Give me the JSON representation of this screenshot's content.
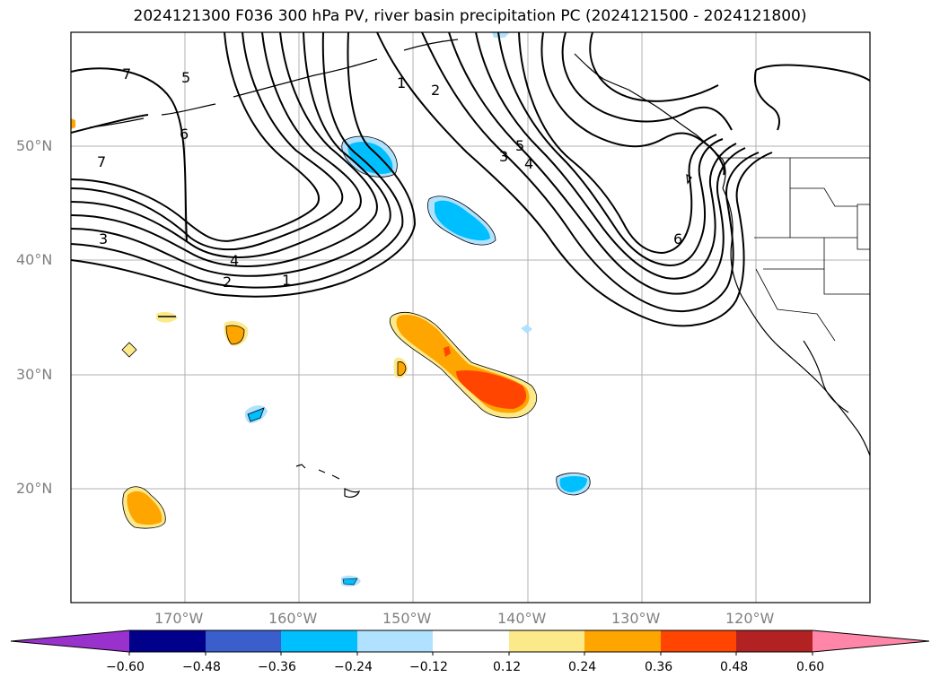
{
  "title": "2024121300 F036 300 hPa PV, river basin precipitation PC (2024121500 - 2024121800)",
  "map": {
    "lat_ticks": [
      "50°N",
      "40°N",
      "30°N",
      "20°N"
    ],
    "lon_ticks": [
      "170°W",
      "160°W",
      "150°W",
      "140°W",
      "130°W",
      "120°W"
    ],
    "lat_range": [
      10,
      60
    ],
    "lon_range": [
      -180,
      -110
    ],
    "grid": true,
    "pv_contour_labels": [
      "1",
      "2",
      "3",
      "4",
      "5",
      "6",
      "7"
    ]
  },
  "colorbar": {
    "tick_labels": [
      "−0.60",
      "−0.48",
      "−0.36",
      "−0.24",
      "−0.12",
      "0.12",
      "0.24",
      "0.36",
      "0.48",
      "0.60"
    ],
    "colors": [
      "#9932cc",
      "#00008b",
      "#3a5fcd",
      "#00bfff",
      "#b0e2ff",
      "#ffffff",
      "#fce98a",
      "#ffa500",
      "#ff4500",
      "#b22222",
      "#ff86a8"
    ]
  }
}
